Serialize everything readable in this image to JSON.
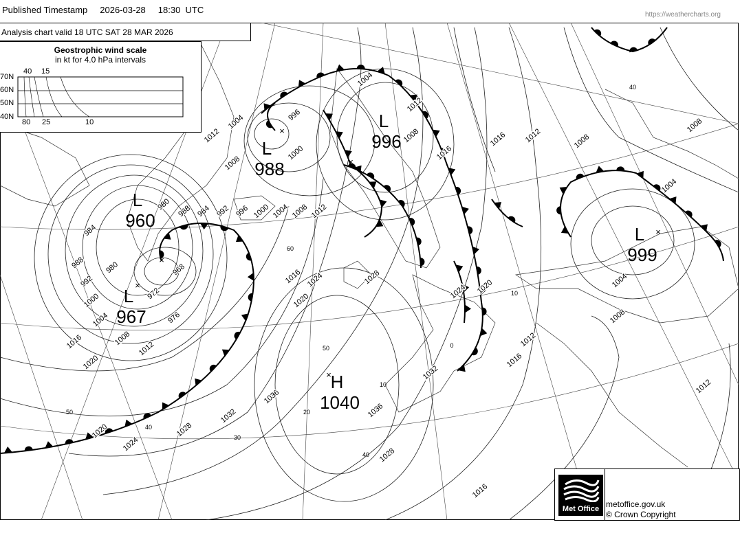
{
  "header": {
    "label": "Published Timestamp",
    "date": "2026-03-28",
    "time": "18:30  UTC",
    "source": "https://weathercharts.org"
  },
  "chart": {
    "valid": "Analysis chart  valid 18 UTC SAT 28  MAR 2026"
  },
  "wind_scale": {
    "title": "Geostrophic wind scale",
    "subtitle": "in kt for 4.0 hPa intervals",
    "lat_labels": [
      "70N",
      "60N",
      "50N",
      "40N"
    ],
    "top_labels": [
      "40",
      "15"
    ],
    "bottom_labels": [
      "80",
      "25",
      "10"
    ]
  },
  "pressure_centres": [
    {
      "type": "L",
      "value": "988"
    },
    {
      "type": "L",
      "value": "996"
    },
    {
      "type": "L",
      "value": "960"
    },
    {
      "type": "L",
      "value": "967"
    },
    {
      "type": "L",
      "value": "999"
    },
    {
      "type": "H",
      "value": "1040"
    }
  ],
  "isobar_labels": [
    "1004",
    "1008",
    "1012",
    "1000",
    "996",
    "1004",
    "1008",
    "1012",
    "1016",
    "1016",
    "1012",
    "1008",
    "1008",
    "1004",
    "1004",
    "1008",
    "1012",
    "1016",
    "1012",
    "1016",
    "1020",
    "1024",
    "1028",
    "1032",
    "1036",
    "1028",
    "1036",
    "1032",
    "1028",
    "1024",
    "1020",
    "1020",
    "1016",
    "1012",
    "1008",
    "1004",
    "1000",
    "992",
    "988",
    "984",
    "980",
    "980",
    "972",
    "976",
    "968",
    "988",
    "984",
    "992",
    "996",
    "1000",
    "1004",
    "1008",
    "1012",
    "1016",
    "1020",
    "1024"
  ],
  "grid_labels": [
    "60",
    "50",
    "40",
    "30",
    "20",
    "10",
    "40",
    "10",
    "40",
    "50",
    "0"
  ],
  "footer": {
    "logo_text": "Met Office",
    "site": "metoffice.gov.uk",
    "copyright": "© Crown Copyright"
  }
}
